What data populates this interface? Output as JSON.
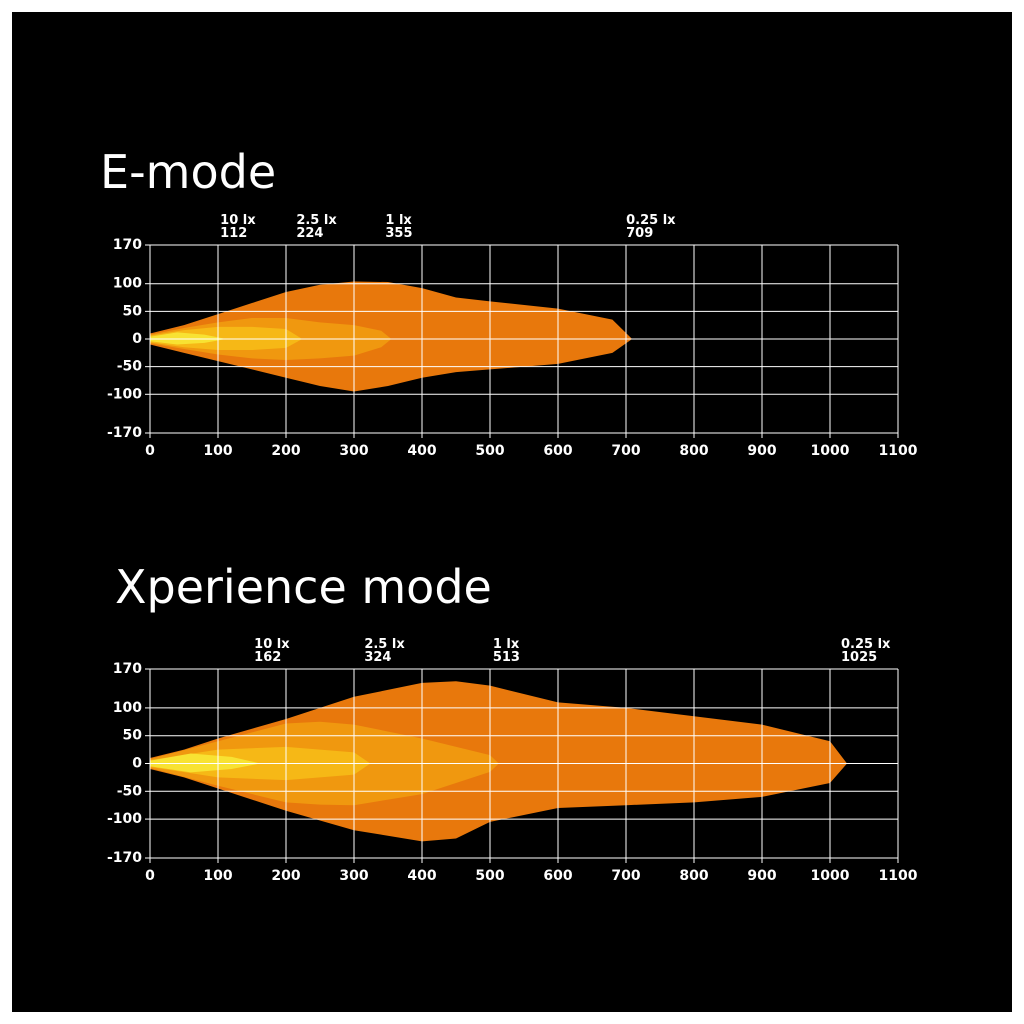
{
  "chart_data": [
    {
      "type": "beam",
      "title": "E-mode",
      "xlim": [
        0,
        1100
      ],
      "xticks": [
        0,
        100,
        200,
        300,
        400,
        500,
        600,
        700,
        800,
        900,
        1000,
        1100
      ],
      "ylim": [
        -170,
        170
      ],
      "yticks": [
        -170,
        -100,
        -50,
        0,
        50,
        100,
        170
      ],
      "grid": true,
      "series": [
        {
          "name": "0.25 lx",
          "reach": 709,
          "color": "#e8780c",
          "x": [
            0,
            50,
            100,
            150,
            200,
            250,
            300,
            350,
            400,
            450,
            500,
            600,
            680,
            709
          ],
          "upper": [
            10,
            25,
            45,
            65,
            85,
            98,
            104,
            103,
            92,
            75,
            68,
            55,
            35,
            0
          ],
          "lower": [
            -10,
            -25,
            -40,
            -55,
            -70,
            -85,
            -95,
            -85,
            -70,
            -60,
            -55,
            -45,
            -25,
            0
          ]
        },
        {
          "name": "1 lx",
          "reach": 355,
          "color": "#f0980f",
          "x": [
            0,
            50,
            100,
            150,
            200,
            250,
            300,
            340,
            355
          ],
          "upper": [
            8,
            20,
            30,
            38,
            38,
            30,
            25,
            15,
            0
          ],
          "lower": [
            -8,
            -18,
            -28,
            -35,
            -38,
            -35,
            -30,
            -15,
            0
          ]
        },
        {
          "name": "2.5 lx",
          "reach": 224,
          "color": "#f6b816",
          "x": [
            0,
            50,
            100,
            150,
            200,
            224
          ],
          "upper": [
            6,
            16,
            22,
            22,
            18,
            0
          ],
          "lower": [
            -6,
            -15,
            -20,
            -20,
            -16,
            0
          ]
        },
        {
          "name": "10 lx",
          "reach": 112,
          "color": "#f8e232",
          "x": [
            0,
            40,
            80,
            112
          ],
          "upper": [
            4,
            12,
            8,
            0
          ],
          "lower": [
            -4,
            -10,
            -7,
            0
          ]
        }
      ]
    },
    {
      "type": "beam",
      "title": "Xperience mode",
      "xlim": [
        0,
        1100
      ],
      "xticks": [
        0,
        100,
        200,
        300,
        400,
        500,
        600,
        700,
        800,
        900,
        1000,
        1100
      ],
      "ylim": [
        -170,
        170
      ],
      "yticks": [
        -170,
        -100,
        -50,
        0,
        50,
        100,
        170
      ],
      "grid": true,
      "series": [
        {
          "name": "0.25 lx",
          "reach": 1025,
          "color": "#e8780c",
          "x": [
            0,
            50,
            100,
            200,
            300,
            400,
            450,
            500,
            600,
            700,
            800,
            900,
            1000,
            1025
          ],
          "upper": [
            10,
            25,
            45,
            80,
            120,
            145,
            148,
            140,
            110,
            100,
            85,
            70,
            40,
            0
          ],
          "lower": [
            -10,
            -25,
            -45,
            -85,
            -120,
            -140,
            -135,
            -105,
            -80,
            -75,
            -70,
            -60,
            -35,
            0
          ]
        },
        {
          "name": "1 lx",
          "reach": 513,
          "color": "#f0980f",
          "x": [
            0,
            100,
            200,
            250,
            300,
            400,
            500,
            513
          ],
          "upper": [
            8,
            40,
            72,
            75,
            70,
            45,
            15,
            0
          ],
          "lower": [
            -8,
            -40,
            -70,
            -74,
            -75,
            -55,
            -15,
            0
          ]
        },
        {
          "name": "2.5 lx",
          "reach": 324,
          "color": "#f6b816",
          "x": [
            0,
            100,
            200,
            300,
            324
          ],
          "upper": [
            6,
            25,
            30,
            20,
            0
          ],
          "lower": [
            -6,
            -25,
            -30,
            -20,
            0
          ]
        },
        {
          "name": "10 lx",
          "reach": 162,
          "color": "#f8e232",
          "x": [
            0,
            60,
            120,
            162
          ],
          "upper": [
            5,
            18,
            12,
            0
          ],
          "lower": [
            -5,
            -16,
            -10,
            0
          ]
        }
      ]
    }
  ]
}
